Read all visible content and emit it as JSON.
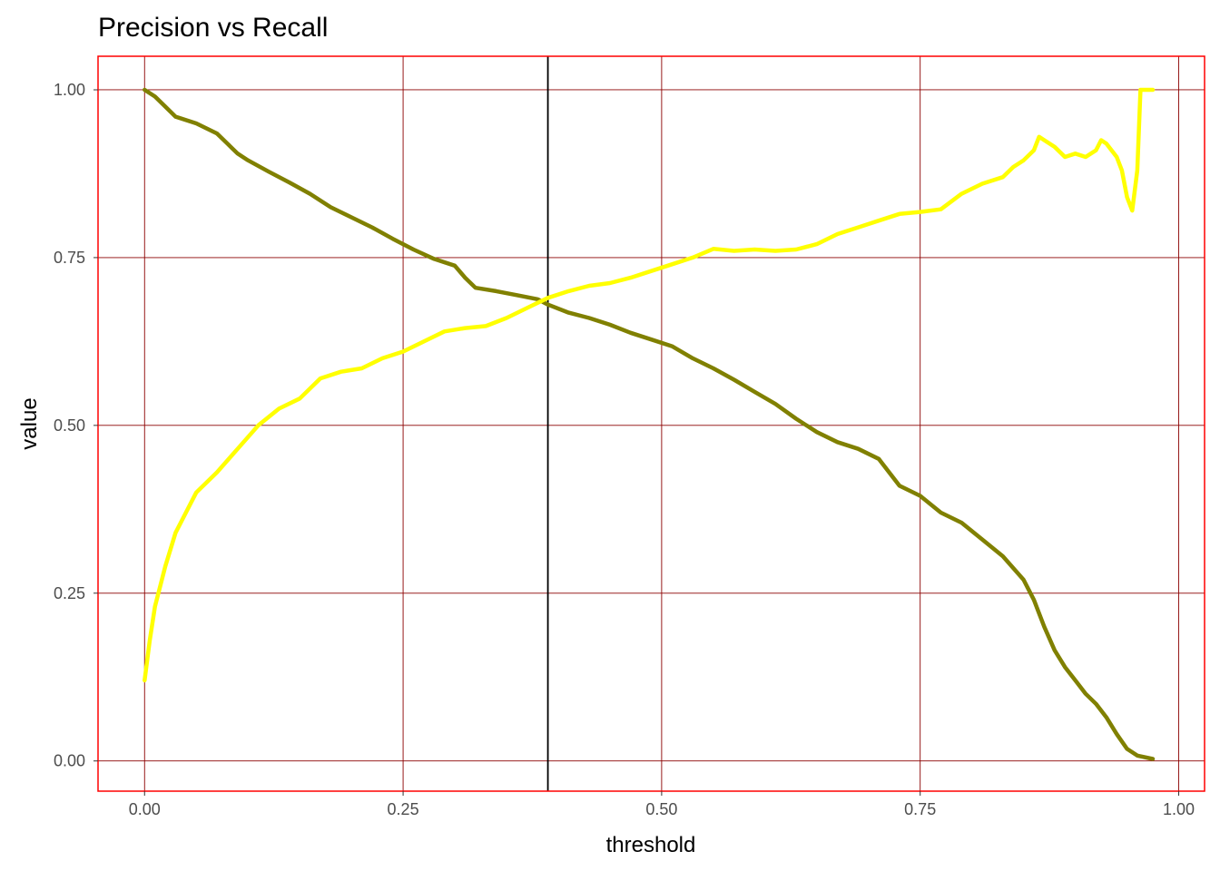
{
  "chart_data": {
    "type": "line",
    "title": "Precision vs Recall",
    "xlabel": "threshold",
    "ylabel": "value",
    "xlim": [
      -0.045,
      1.025
    ],
    "ylim": [
      -0.045,
      1.05
    ],
    "x_ticks": [
      0.0,
      0.25,
      0.5,
      0.75,
      1.0
    ],
    "x_tick_labels": [
      "0.00",
      "0.25",
      "0.50",
      "0.75",
      "1.00"
    ],
    "y_ticks": [
      0.0,
      0.25,
      0.5,
      0.75,
      1.0
    ],
    "y_tick_labels": [
      "0.00",
      "0.25",
      "0.50",
      "0.75",
      "1.00"
    ],
    "grid": true,
    "colors": {
      "grid": "#8b0000",
      "panel_border": "#ff0000",
      "vline": "#000000"
    },
    "vline": {
      "x": 0.39
    },
    "series": [
      {
        "color": "#808000",
        "x": [
          0.0,
          0.01,
          0.02,
          0.03,
          0.05,
          0.07,
          0.08,
          0.09,
          0.1,
          0.12,
          0.14,
          0.16,
          0.18,
          0.2,
          0.22,
          0.24,
          0.26,
          0.28,
          0.3,
          0.31,
          0.32,
          0.34,
          0.36,
          0.38,
          0.39,
          0.41,
          0.43,
          0.45,
          0.47,
          0.49,
          0.51,
          0.53,
          0.55,
          0.57,
          0.59,
          0.61,
          0.63,
          0.65,
          0.67,
          0.69,
          0.71,
          0.73,
          0.75,
          0.77,
          0.79,
          0.81,
          0.83,
          0.85,
          0.86,
          0.87,
          0.88,
          0.89,
          0.9,
          0.91,
          0.92,
          0.93,
          0.94,
          0.95,
          0.96,
          0.975
        ],
        "y": [
          1.0,
          0.99,
          0.975,
          0.96,
          0.95,
          0.935,
          0.92,
          0.905,
          0.895,
          0.878,
          0.862,
          0.845,
          0.825,
          0.81,
          0.795,
          0.778,
          0.762,
          0.748,
          0.738,
          0.72,
          0.705,
          0.7,
          0.694,
          0.688,
          0.68,
          0.668,
          0.66,
          0.65,
          0.638,
          0.628,
          0.618,
          0.6,
          0.585,
          0.568,
          0.55,
          0.532,
          0.51,
          0.49,
          0.475,
          0.465,
          0.45,
          0.41,
          0.395,
          0.37,
          0.355,
          0.33,
          0.305,
          0.27,
          0.24,
          0.2,
          0.165,
          0.14,
          0.12,
          0.1,
          0.085,
          0.065,
          0.04,
          0.018,
          0.008,
          0.003
        ]
      },
      {
        "color": "#ffff00",
        "x": [
          0.0,
          0.005,
          0.01,
          0.02,
          0.03,
          0.04,
          0.05,
          0.07,
          0.09,
          0.11,
          0.13,
          0.15,
          0.17,
          0.19,
          0.21,
          0.23,
          0.25,
          0.27,
          0.29,
          0.31,
          0.33,
          0.35,
          0.37,
          0.39,
          0.41,
          0.43,
          0.45,
          0.47,
          0.49,
          0.51,
          0.53,
          0.55,
          0.57,
          0.59,
          0.61,
          0.63,
          0.65,
          0.67,
          0.69,
          0.71,
          0.73,
          0.75,
          0.77,
          0.79,
          0.81,
          0.83,
          0.84,
          0.85,
          0.86,
          0.865,
          0.87,
          0.88,
          0.89,
          0.9,
          0.91,
          0.92,
          0.925,
          0.93,
          0.94,
          0.945,
          0.95,
          0.955,
          0.96,
          0.963,
          0.97,
          0.975
        ],
        "y": [
          0.12,
          0.18,
          0.23,
          0.29,
          0.34,
          0.37,
          0.4,
          0.43,
          0.465,
          0.5,
          0.525,
          0.54,
          0.57,
          0.58,
          0.585,
          0.6,
          0.61,
          0.625,
          0.64,
          0.645,
          0.648,
          0.66,
          0.675,
          0.69,
          0.7,
          0.708,
          0.712,
          0.72,
          0.73,
          0.74,
          0.75,
          0.763,
          0.76,
          0.762,
          0.76,
          0.762,
          0.77,
          0.785,
          0.795,
          0.805,
          0.815,
          0.818,
          0.822,
          0.845,
          0.86,
          0.87,
          0.885,
          0.895,
          0.91,
          0.93,
          0.925,
          0.915,
          0.9,
          0.905,
          0.9,
          0.91,
          0.925,
          0.92,
          0.9,
          0.88,
          0.84,
          0.82,
          0.88,
          1.0,
          1.0,
          1.0
        ]
      }
    ]
  }
}
